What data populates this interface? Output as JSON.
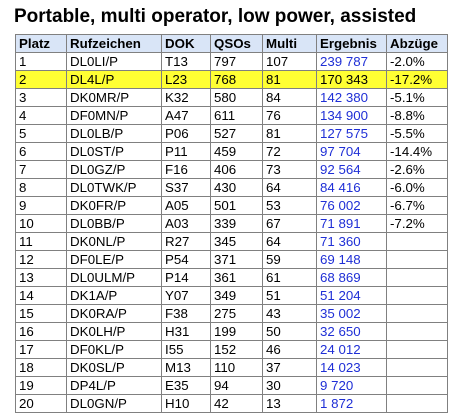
{
  "title": "Portable, multi operator, low power, assisted",
  "table": {
    "headers": {
      "platz": "Platz",
      "rufzeichen": "Rufzeichen",
      "dok": "DOK",
      "qsos": "QSOs",
      "multi": "Multi",
      "ergebnis": "Ergebnis",
      "abzuege": "Abzüge"
    },
    "rows": [
      {
        "platz": "1",
        "rufzeichen": "DL0LI/P",
        "dok": "T13",
        "qsos": "797",
        "multi": "107",
        "ergebnis": "239 787",
        "abzuege": "-2.0%"
      },
      {
        "platz": "2",
        "rufzeichen": "DL4L/P",
        "dok": "L23",
        "qsos": "768",
        "multi": "81",
        "ergebnis": "170 343",
        "abzuege": "-17.2%"
      },
      {
        "platz": "3",
        "rufzeichen": "DK0MR/P",
        "dok": "K32",
        "qsos": "580",
        "multi": "84",
        "ergebnis": "142 380",
        "abzuege": "-5.1%"
      },
      {
        "platz": "4",
        "rufzeichen": "DF0MN/P",
        "dok": "A47",
        "qsos": "611",
        "multi": "76",
        "ergebnis": "134 900",
        "abzuege": "-8.8%"
      },
      {
        "platz": "5",
        "rufzeichen": "DL0LB/P",
        "dok": "P06",
        "qsos": "527",
        "multi": "81",
        "ergebnis": "127 575",
        "abzuege": "-5.5%"
      },
      {
        "platz": "6",
        "rufzeichen": "DL0ST/P",
        "dok": "P11",
        "qsos": "459",
        "multi": "72",
        "ergebnis": "97 704",
        "abzuege": "-14.4%"
      },
      {
        "platz": "7",
        "rufzeichen": "DL0GZ/P",
        "dok": "F16",
        "qsos": "406",
        "multi": "73",
        "ergebnis": "92 564",
        "abzuege": "-2.6%"
      },
      {
        "platz": "8",
        "rufzeichen": "DL0TWK/P",
        "dok": "S37",
        "qsos": "430",
        "multi": "64",
        "ergebnis": "84 416",
        "abzuege": "-6.0%"
      },
      {
        "platz": "9",
        "rufzeichen": "DK0FR/P",
        "dok": "A05",
        "qsos": "501",
        "multi": "53",
        "ergebnis": "76 002",
        "abzuege": "-6.7%"
      },
      {
        "platz": "10",
        "rufzeichen": "DL0BB/P",
        "dok": "A03",
        "qsos": "339",
        "multi": "67",
        "ergebnis": "71 891",
        "abzuege": "-7.2%"
      },
      {
        "platz": "11",
        "rufzeichen": "DK0NL/P",
        "dok": "R27",
        "qsos": "345",
        "multi": "64",
        "ergebnis": "71 360",
        "abzuege": ""
      },
      {
        "platz": "12",
        "rufzeichen": "DF0LE/P",
        "dok": "P54",
        "qsos": "371",
        "multi": "59",
        "ergebnis": "69 148",
        "abzuege": ""
      },
      {
        "platz": "13",
        "rufzeichen": "DL0ULM/P",
        "dok": "P14",
        "qsos": "361",
        "multi": "61",
        "ergebnis": "68 869",
        "abzuege": ""
      },
      {
        "platz": "14",
        "rufzeichen": "DK1A/P",
        "dok": "Y07",
        "qsos": "349",
        "multi": "51",
        "ergebnis": "51 204",
        "abzuege": ""
      },
      {
        "platz": "15",
        "rufzeichen": "DK0RA/P",
        "dok": "F38",
        "qsos": "275",
        "multi": "43",
        "ergebnis": "35 002",
        "abzuege": ""
      },
      {
        "platz": "16",
        "rufzeichen": "DK0LH/P",
        "dok": "H31",
        "qsos": "199",
        "multi": "50",
        "ergebnis": "32 650",
        "abzuege": ""
      },
      {
        "platz": "17",
        "rufzeichen": "DF0KL/P",
        "dok": "I55",
        "qsos": "152",
        "multi": "46",
        "ergebnis": "24 012",
        "abzuege": ""
      },
      {
        "platz": "18",
        "rufzeichen": "DK0SL/P",
        "dok": "M13",
        "qsos": "110",
        "multi": "37",
        "ergebnis": "14 023",
        "abzuege": ""
      },
      {
        "platz": "19",
        "rufzeichen": "DP4L/P",
        "dok": "E35",
        "qsos": "94",
        "multi": "30",
        "ergebnis": "9 720",
        "abzuege": ""
      },
      {
        "platz": "20",
        "rufzeichen": "DL0GN/P",
        "dok": "H10",
        "qsos": "42",
        "multi": "13",
        "ergebnis": "1 872",
        "abzuege": ""
      }
    ],
    "highlighted_row_platz": "2"
  },
  "colors": {
    "header_background": "#d9e5f7",
    "highlight_background": "#ffff33",
    "score_text": "#1f2fd6",
    "border": "#808080"
  }
}
